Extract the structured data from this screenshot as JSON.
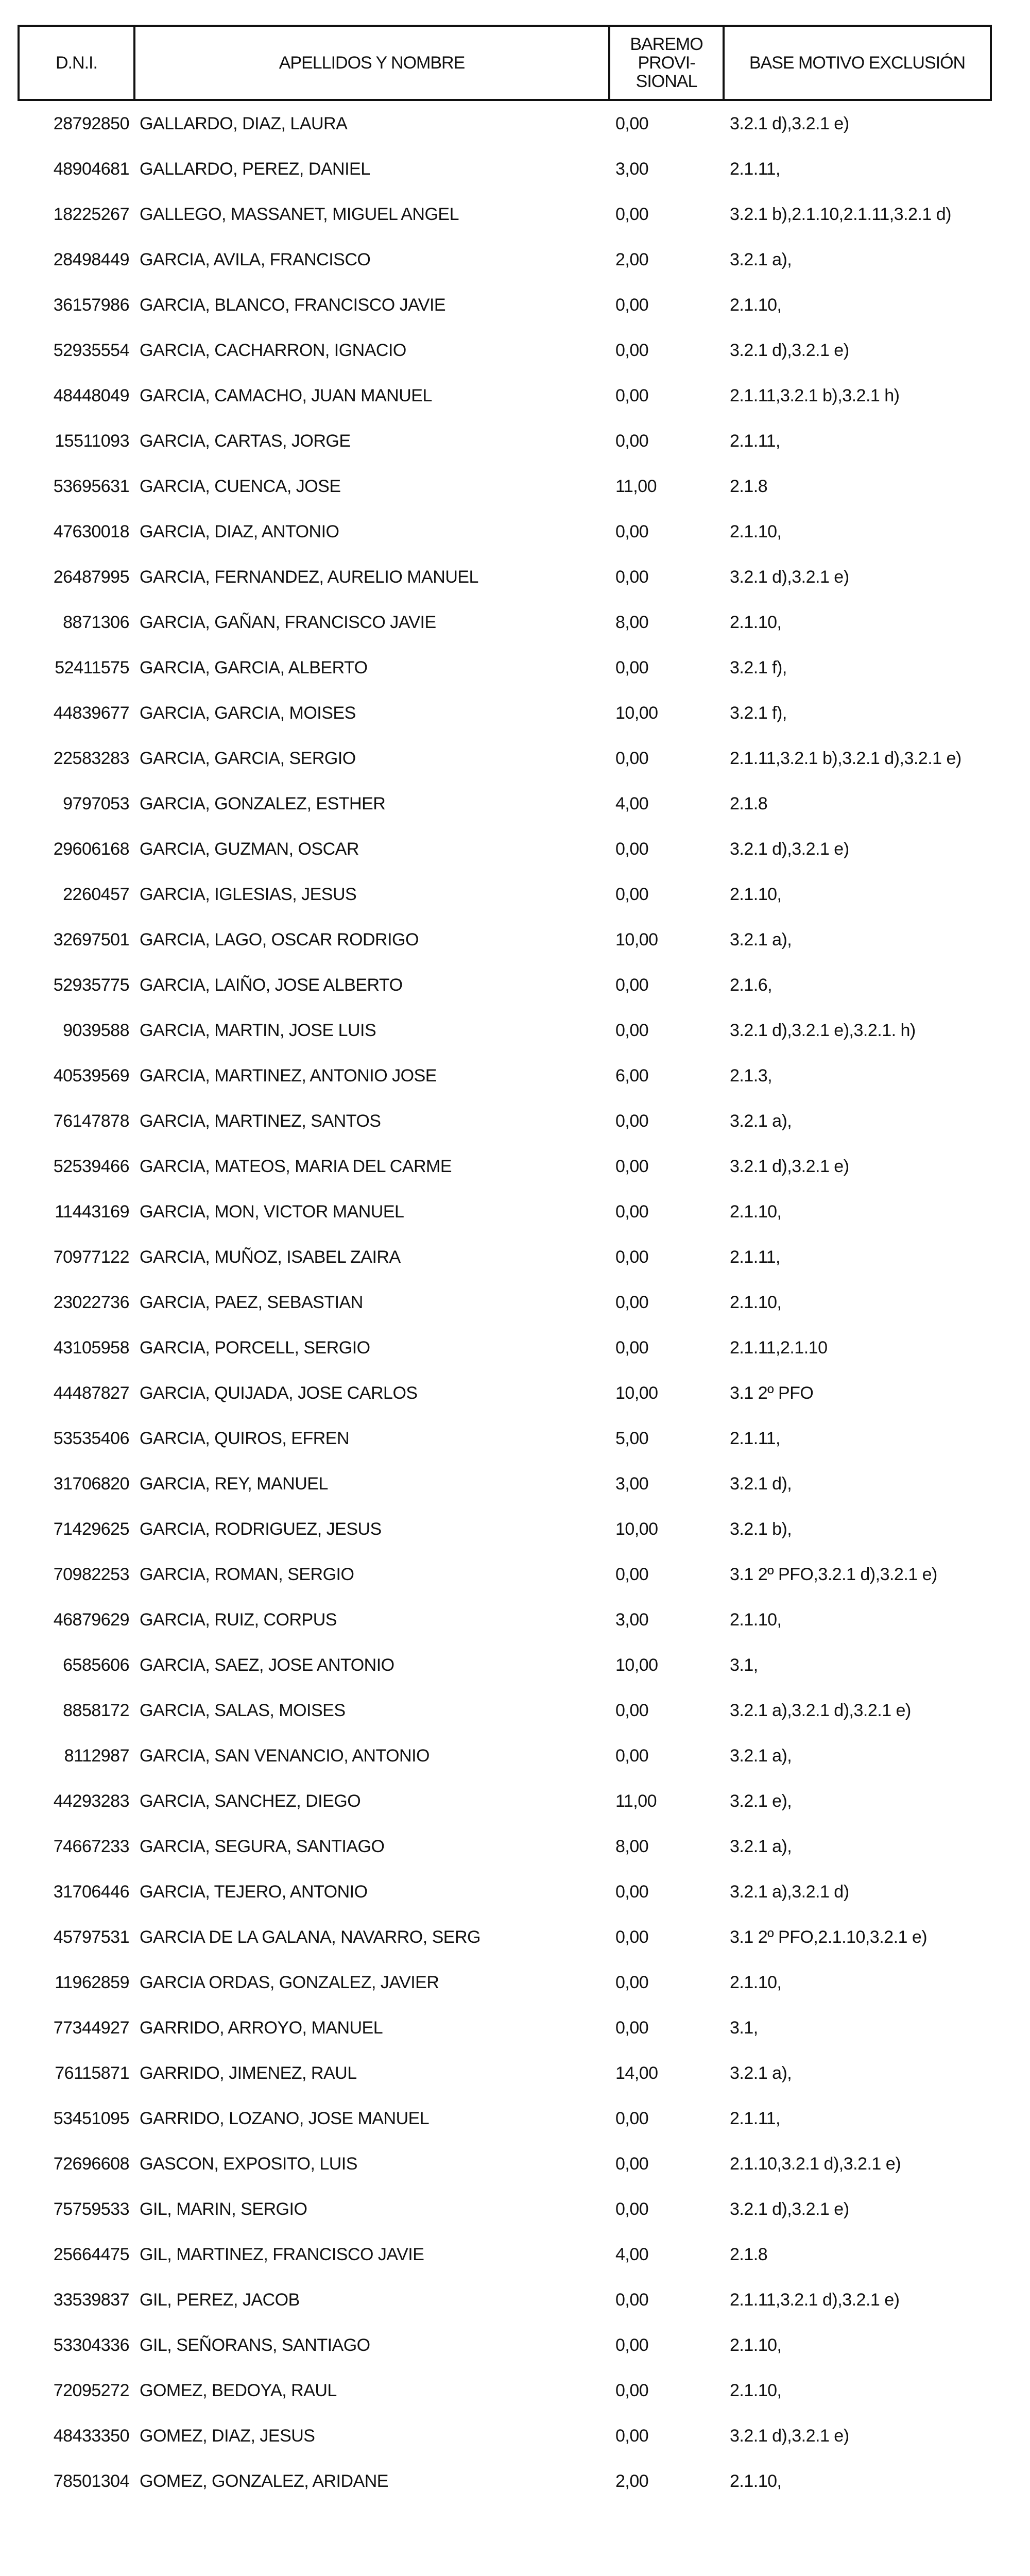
{
  "header": {
    "dni": "D.N.I.",
    "name": "APELLIDOS Y NOMBRE",
    "baremo": "BAREMO PROVI- SIONAL",
    "base": "BASE MOTIVO EXCLUSIÓN"
  },
  "rows": [
    {
      "dni": "28792850",
      "name": "GALLARDO, DIAZ, LAURA",
      "baremo": "0,00",
      "base": "3.2.1 d),3.2.1 e)"
    },
    {
      "dni": "48904681",
      "name": "GALLARDO, PEREZ, DANIEL",
      "baremo": "3,00",
      "base": "2.1.11,"
    },
    {
      "dni": "18225267",
      "name": "GALLEGO, MASSANET, MIGUEL ANGEL",
      "baremo": "0,00",
      "base": "3.2.1 b),2.1.10,2.1.11,3.2.1 d)"
    },
    {
      "dni": "28498449",
      "name": "GARCIA, AVILA, FRANCISCO",
      "baremo": "2,00",
      "base": "3.2.1 a),"
    },
    {
      "dni": "36157986",
      "name": "GARCIA, BLANCO, FRANCISCO JAVIE",
      "baremo": "0,00",
      "base": "2.1.10,"
    },
    {
      "dni": "52935554",
      "name": "GARCIA, CACHARRON, IGNACIO",
      "baremo": "0,00",
      "base": "3.2.1 d),3.2.1 e)"
    },
    {
      "dni": "48448049",
      "name": "GARCIA, CAMACHO, JUAN MANUEL",
      "baremo": "0,00",
      "base": "2.1.11,3.2.1 b),3.2.1 h)"
    },
    {
      "dni": "15511093",
      "name": "GARCIA, CARTAS, JORGE",
      "baremo": "0,00",
      "base": "2.1.11,"
    },
    {
      "dni": "53695631",
      "name": "GARCIA, CUENCA, JOSE",
      "baremo": "11,00",
      "base": "2.1.8"
    },
    {
      "dni": "47630018",
      "name": "GARCIA, DIAZ, ANTONIO",
      "baremo": "0,00",
      "base": "2.1.10,"
    },
    {
      "dni": "26487995",
      "name": "GARCIA, FERNANDEZ, AURELIO MANUEL",
      "baremo": "0,00",
      "base": "3.2.1 d),3.2.1 e)"
    },
    {
      "dni": "8871306",
      "name": "GARCIA, GAÑAN, FRANCISCO JAVIE",
      "baremo": "8,00",
      "base": "2.1.10,"
    },
    {
      "dni": "52411575",
      "name": "GARCIA, GARCIA, ALBERTO",
      "baremo": "0,00",
      "base": "3.2.1 f),"
    },
    {
      "dni": "44839677",
      "name": "GARCIA, GARCIA, MOISES",
      "baremo": "10,00",
      "base": "3.2.1 f),"
    },
    {
      "dni": "22583283",
      "name": "GARCIA, GARCIA, SERGIO",
      "baremo": "0,00",
      "base": "2.1.11,3.2.1 b),3.2.1 d),3.2.1 e)"
    },
    {
      "dni": "9797053",
      "name": "GARCIA, GONZALEZ, ESTHER",
      "baremo": "4,00",
      "base": "2.1.8"
    },
    {
      "dni": "29606168",
      "name": "GARCIA, GUZMAN, OSCAR",
      "baremo": "0,00",
      "base": "3.2.1 d),3.2.1 e)"
    },
    {
      "dni": "2260457",
      "name": "GARCIA, IGLESIAS, JESUS",
      "baremo": "0,00",
      "base": "2.1.10,"
    },
    {
      "dni": "32697501",
      "name": "GARCIA, LAGO, OSCAR RODRIGO",
      "baremo": "10,00",
      "base": "3.2.1 a),"
    },
    {
      "dni": "52935775",
      "name": "GARCIA, LAIÑO, JOSE ALBERTO",
      "baremo": "0,00",
      "base": "2.1.6,"
    },
    {
      "dni": "9039588",
      "name": "GARCIA, MARTIN, JOSE LUIS",
      "baremo": "0,00",
      "base": "3.2.1 d),3.2.1 e),3.2.1. h)"
    },
    {
      "dni": "40539569",
      "name": "GARCIA, MARTINEZ, ANTONIO JOSE",
      "baremo": "6,00",
      "base": "2.1.3,"
    },
    {
      "dni": "76147878",
      "name": "GARCIA, MARTINEZ, SANTOS",
      "baremo": "0,00",
      "base": "3.2.1 a),"
    },
    {
      "dni": "52539466",
      "name": "GARCIA, MATEOS, MARIA DEL CARME",
      "baremo": "0,00",
      "base": "3.2.1 d),3.2.1 e)"
    },
    {
      "dni": "11443169",
      "name": "GARCIA, MON, VICTOR MANUEL",
      "baremo": "0,00",
      "base": "2.1.10,"
    },
    {
      "dni": "70977122",
      "name": "GARCIA, MUÑOZ, ISABEL ZAIRA",
      "baremo": "0,00",
      "base": "2.1.11,"
    },
    {
      "dni": "23022736",
      "name": "GARCIA, PAEZ, SEBASTIAN",
      "baremo": "0,00",
      "base": "2.1.10,"
    },
    {
      "dni": "43105958",
      "name": "GARCIA, PORCELL, SERGIO",
      "baremo": "0,00",
      "base": "2.1.11,2.1.10"
    },
    {
      "dni": "44487827",
      "name": "GARCIA, QUIJADA, JOSE CARLOS",
      "baremo": "10,00",
      "base": "3.1 2º PFO"
    },
    {
      "dni": "53535406",
      "name": "GARCIA, QUIROS, EFREN",
      "baremo": "5,00",
      "base": "2.1.11,"
    },
    {
      "dni": "31706820",
      "name": "GARCIA, REY, MANUEL",
      "baremo": "3,00",
      "base": "3.2.1 d),"
    },
    {
      "dni": "71429625",
      "name": "GARCIA, RODRIGUEZ, JESUS",
      "baremo": "10,00",
      "base": "3.2.1 b),"
    },
    {
      "dni": "70982253",
      "name": "GARCIA, ROMAN, SERGIO",
      "baremo": "0,00",
      "base": "3.1 2º PFO,3.2.1 d),3.2.1 e)"
    },
    {
      "dni": "46879629",
      "name": "GARCIA, RUIZ, CORPUS",
      "baremo": "3,00",
      "base": "2.1.10,"
    },
    {
      "dni": "6585606",
      "name": "GARCIA, SAEZ, JOSE ANTONIO",
      "baremo": "10,00",
      "base": "3.1,"
    },
    {
      "dni": "8858172",
      "name": "GARCIA, SALAS, MOISES",
      "baremo": "0,00",
      "base": "3.2.1 a),3.2.1 d),3.2.1 e)"
    },
    {
      "dni": "8112987",
      "name": "GARCIA, SAN VENANCIO, ANTONIO",
      "baremo": "0,00",
      "base": "3.2.1 a),"
    },
    {
      "dni": "44293283",
      "name": "GARCIA, SANCHEZ, DIEGO",
      "baremo": "11,00",
      "base": "3.2.1 e),"
    },
    {
      "dni": "74667233",
      "name": "GARCIA, SEGURA, SANTIAGO",
      "baremo": "8,00",
      "base": "3.2.1 a),"
    },
    {
      "dni": "31706446",
      "name": "GARCIA, TEJERO, ANTONIO",
      "baremo": "0,00",
      "base": "3.2.1 a),3.2.1 d)"
    },
    {
      "dni": "45797531",
      "name": "GARCIA DE LA GALANA, NAVARRO, SERG",
      "baremo": "0,00",
      "base": "3.1 2º PFO,2.1.10,3.2.1 e)"
    },
    {
      "dni": "11962859",
      "name": "GARCIA ORDAS, GONZALEZ, JAVIER",
      "baremo": "0,00",
      "base": "2.1.10,"
    },
    {
      "dni": "77344927",
      "name": "GARRIDO, ARROYO, MANUEL",
      "baremo": "0,00",
      "base": "3.1,"
    },
    {
      "dni": "76115871",
      "name": "GARRIDO, JIMENEZ, RAUL",
      "baremo": "14,00",
      "base": "3.2.1 a),"
    },
    {
      "dni": "53451095",
      "name": "GARRIDO, LOZANO, JOSE MANUEL",
      "baremo": "0,00",
      "base": "2.1.11,"
    },
    {
      "dni": "72696608",
      "name": "GASCON, EXPOSITO, LUIS",
      "baremo": "0,00",
      "base": "2.1.10,3.2.1 d),3.2.1 e)"
    },
    {
      "dni": "75759533",
      "name": "GIL, MARIN, SERGIO",
      "baremo": "0,00",
      "base": "3.2.1 d),3.2.1 e)"
    },
    {
      "dni": "25664475",
      "name": "GIL, MARTINEZ, FRANCISCO JAVIE",
      "baremo": "4,00",
      "base": "2.1.8"
    },
    {
      "dni": "33539837",
      "name": "GIL, PEREZ, JACOB",
      "baremo": "0,00",
      "base": "2.1.11,3.2.1 d),3.2.1 e)"
    },
    {
      "dni": "53304336",
      "name": "GIL, SEÑORANS, SANTIAGO",
      "baremo": "0,00",
      "base": "2.1.10,"
    },
    {
      "dni": "72095272",
      "name": "GOMEZ, BEDOYA, RAUL",
      "baremo": "0,00",
      "base": "2.1.10,"
    },
    {
      "dni": "48433350",
      "name": "GOMEZ, DIAZ, JESUS",
      "baremo": "0,00",
      "base": "3.2.1 d),3.2.1 e)"
    },
    {
      "dni": "78501304",
      "name": "GOMEZ, GONZALEZ, ARIDANE",
      "baremo": "2,00",
      "base": "2.1.10,"
    }
  ]
}
